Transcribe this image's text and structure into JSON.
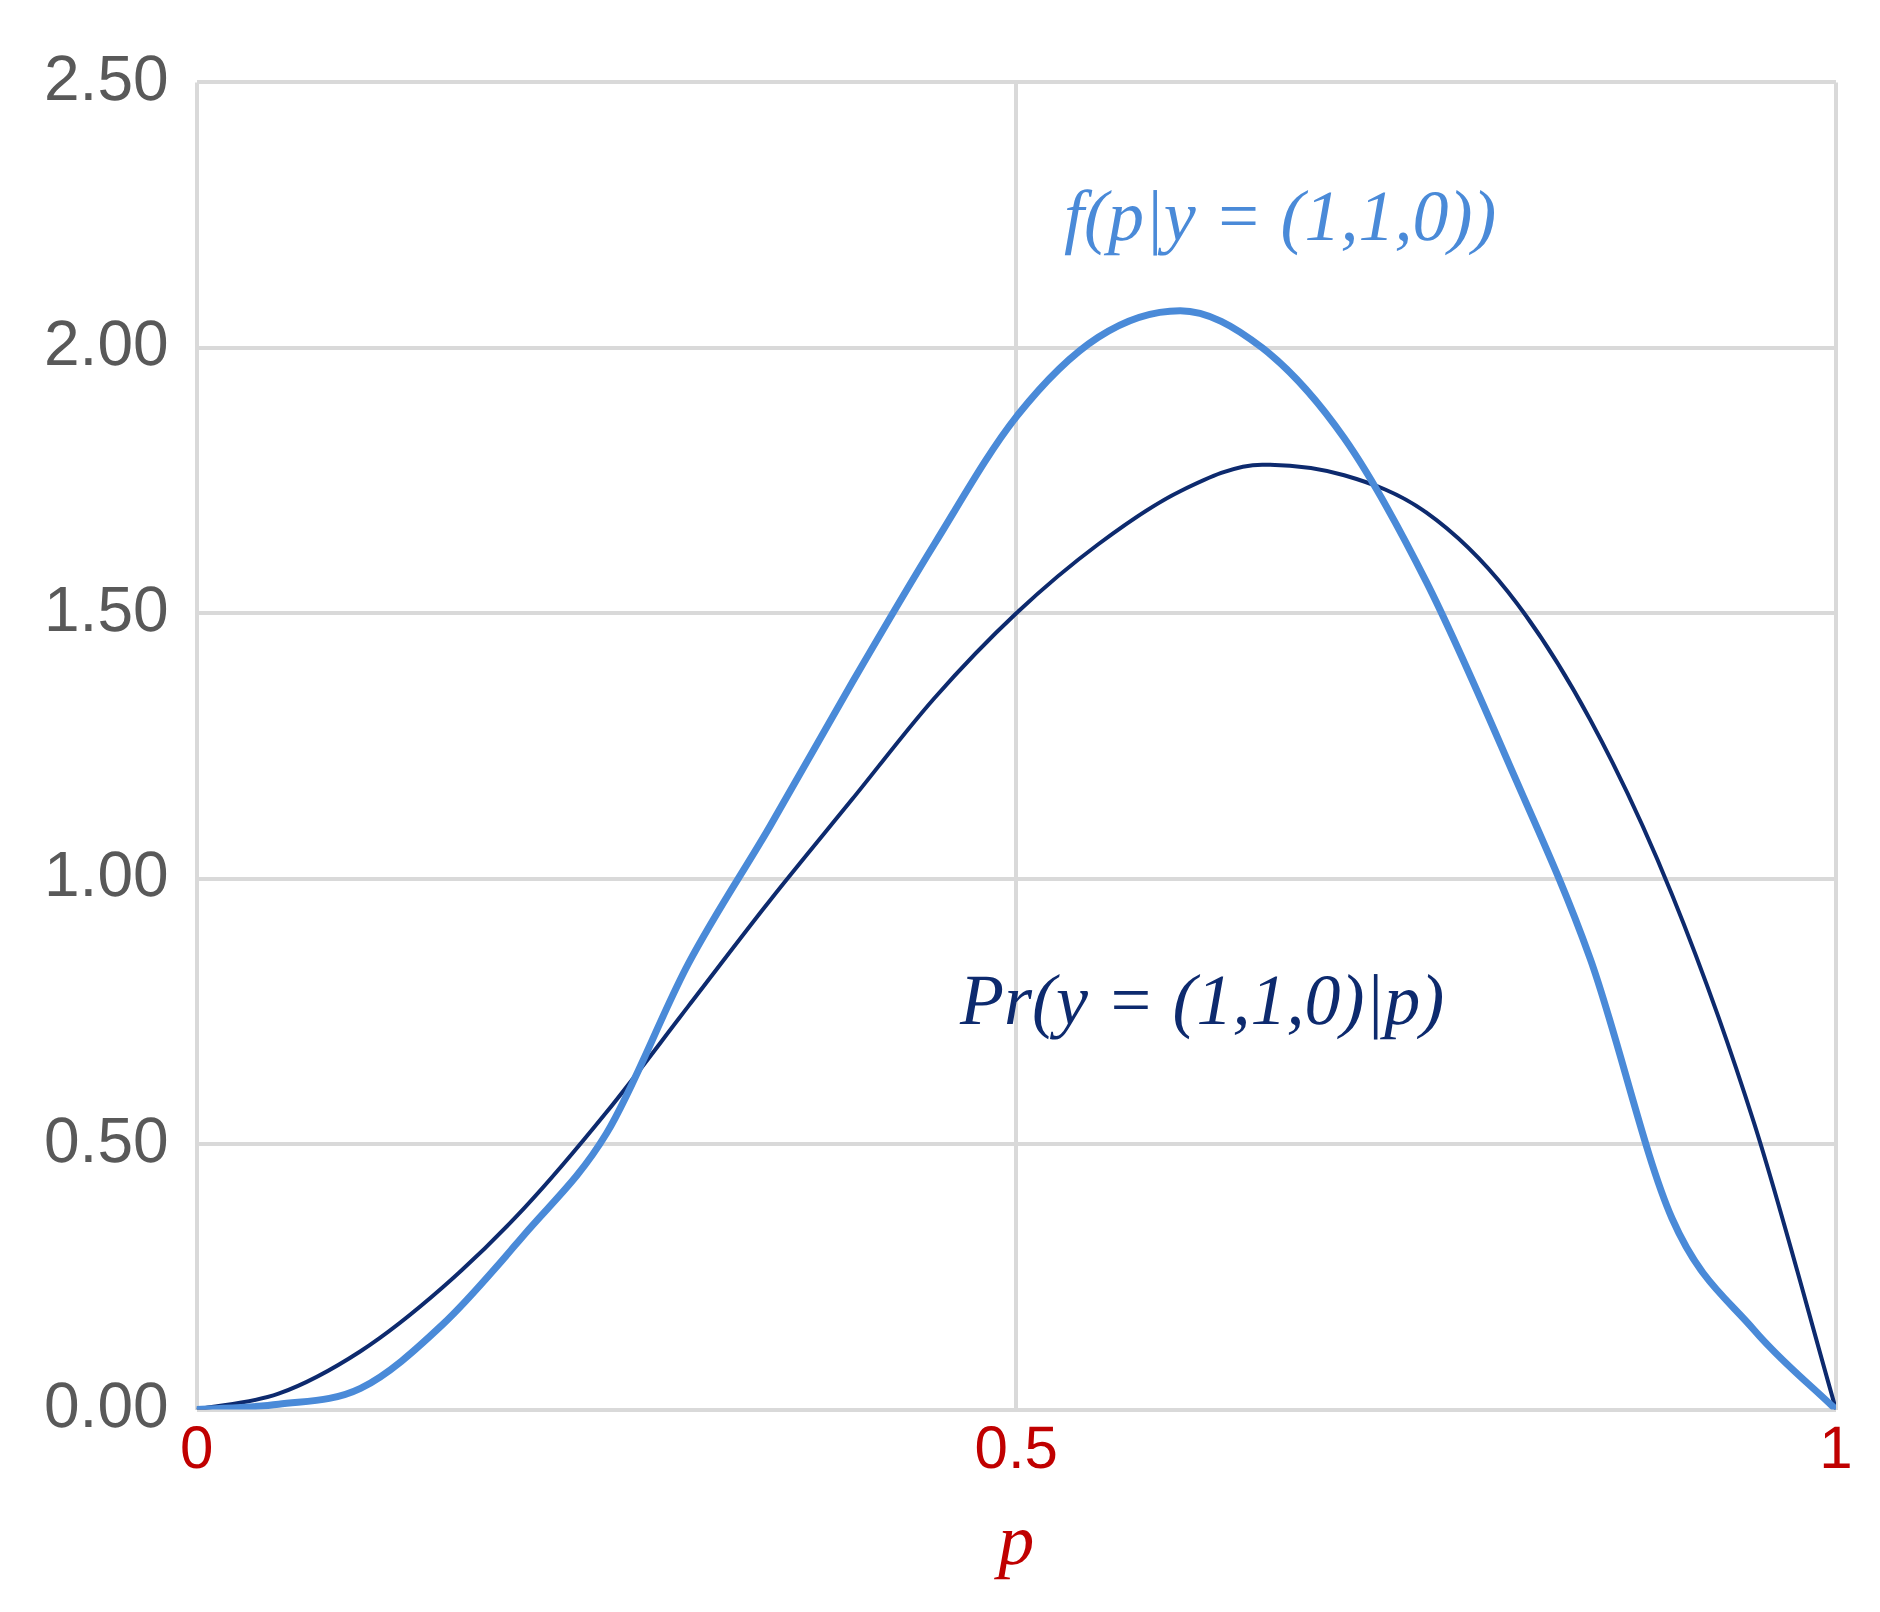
{
  "chart_data": {
    "type": "line",
    "xlabel": "p",
    "x": [
      0,
      0.05,
      0.1,
      0.15,
      0.2,
      0.25,
      0.3,
      0.35,
      0.4,
      0.45,
      0.5,
      0.55,
      0.6,
      0.65,
      0.7,
      0.75,
      0.8,
      0.85,
      0.9,
      0.95,
      1
    ],
    "series": [
      {
        "name": "f(p|y = (1,1,0))",
        "color": "#4a8ad8",
        "values": [
          0,
          0.01,
          0.04,
          0.16,
          0.33,
          0.52,
          0.84,
          1.1,
          1.37,
          1.63,
          1.87,
          2.02,
          2.07,
          2.0,
          1.83,
          1.56,
          1.22,
          0.85,
          0.36,
          0.15,
          0
        ]
      },
      {
        "name": "Pr(y = (1,1,0)|p)",
        "color": "#0d2a6e",
        "values": [
          0,
          0.03,
          0.11,
          0.23,
          0.38,
          0.56,
          0.76,
          0.96,
          1.15,
          1.34,
          1.5,
          1.63,
          1.73,
          1.78,
          1.76,
          1.69,
          1.54,
          1.3,
          0.97,
          0.54,
          0
        ]
      }
    ],
    "xlim": [
      0,
      1
    ],
    "xticks": [
      0,
      0.5,
      1
    ],
    "ylim": [
      0,
      2.5
    ],
    "yticks": [
      {
        "value": 0,
        "label": "0.00"
      },
      {
        "value": 0.5,
        "label": "0.50"
      },
      {
        "value": 1,
        "label": "1.00"
      },
      {
        "value": 1.5,
        "label": "1.50"
      },
      {
        "value": 2,
        "label": "2.00"
      },
      {
        "value": 2.5,
        "label": "2.50"
      }
    ],
    "grid": true,
    "legend": false,
    "marker": "none",
    "line_style": "solid"
  }
}
